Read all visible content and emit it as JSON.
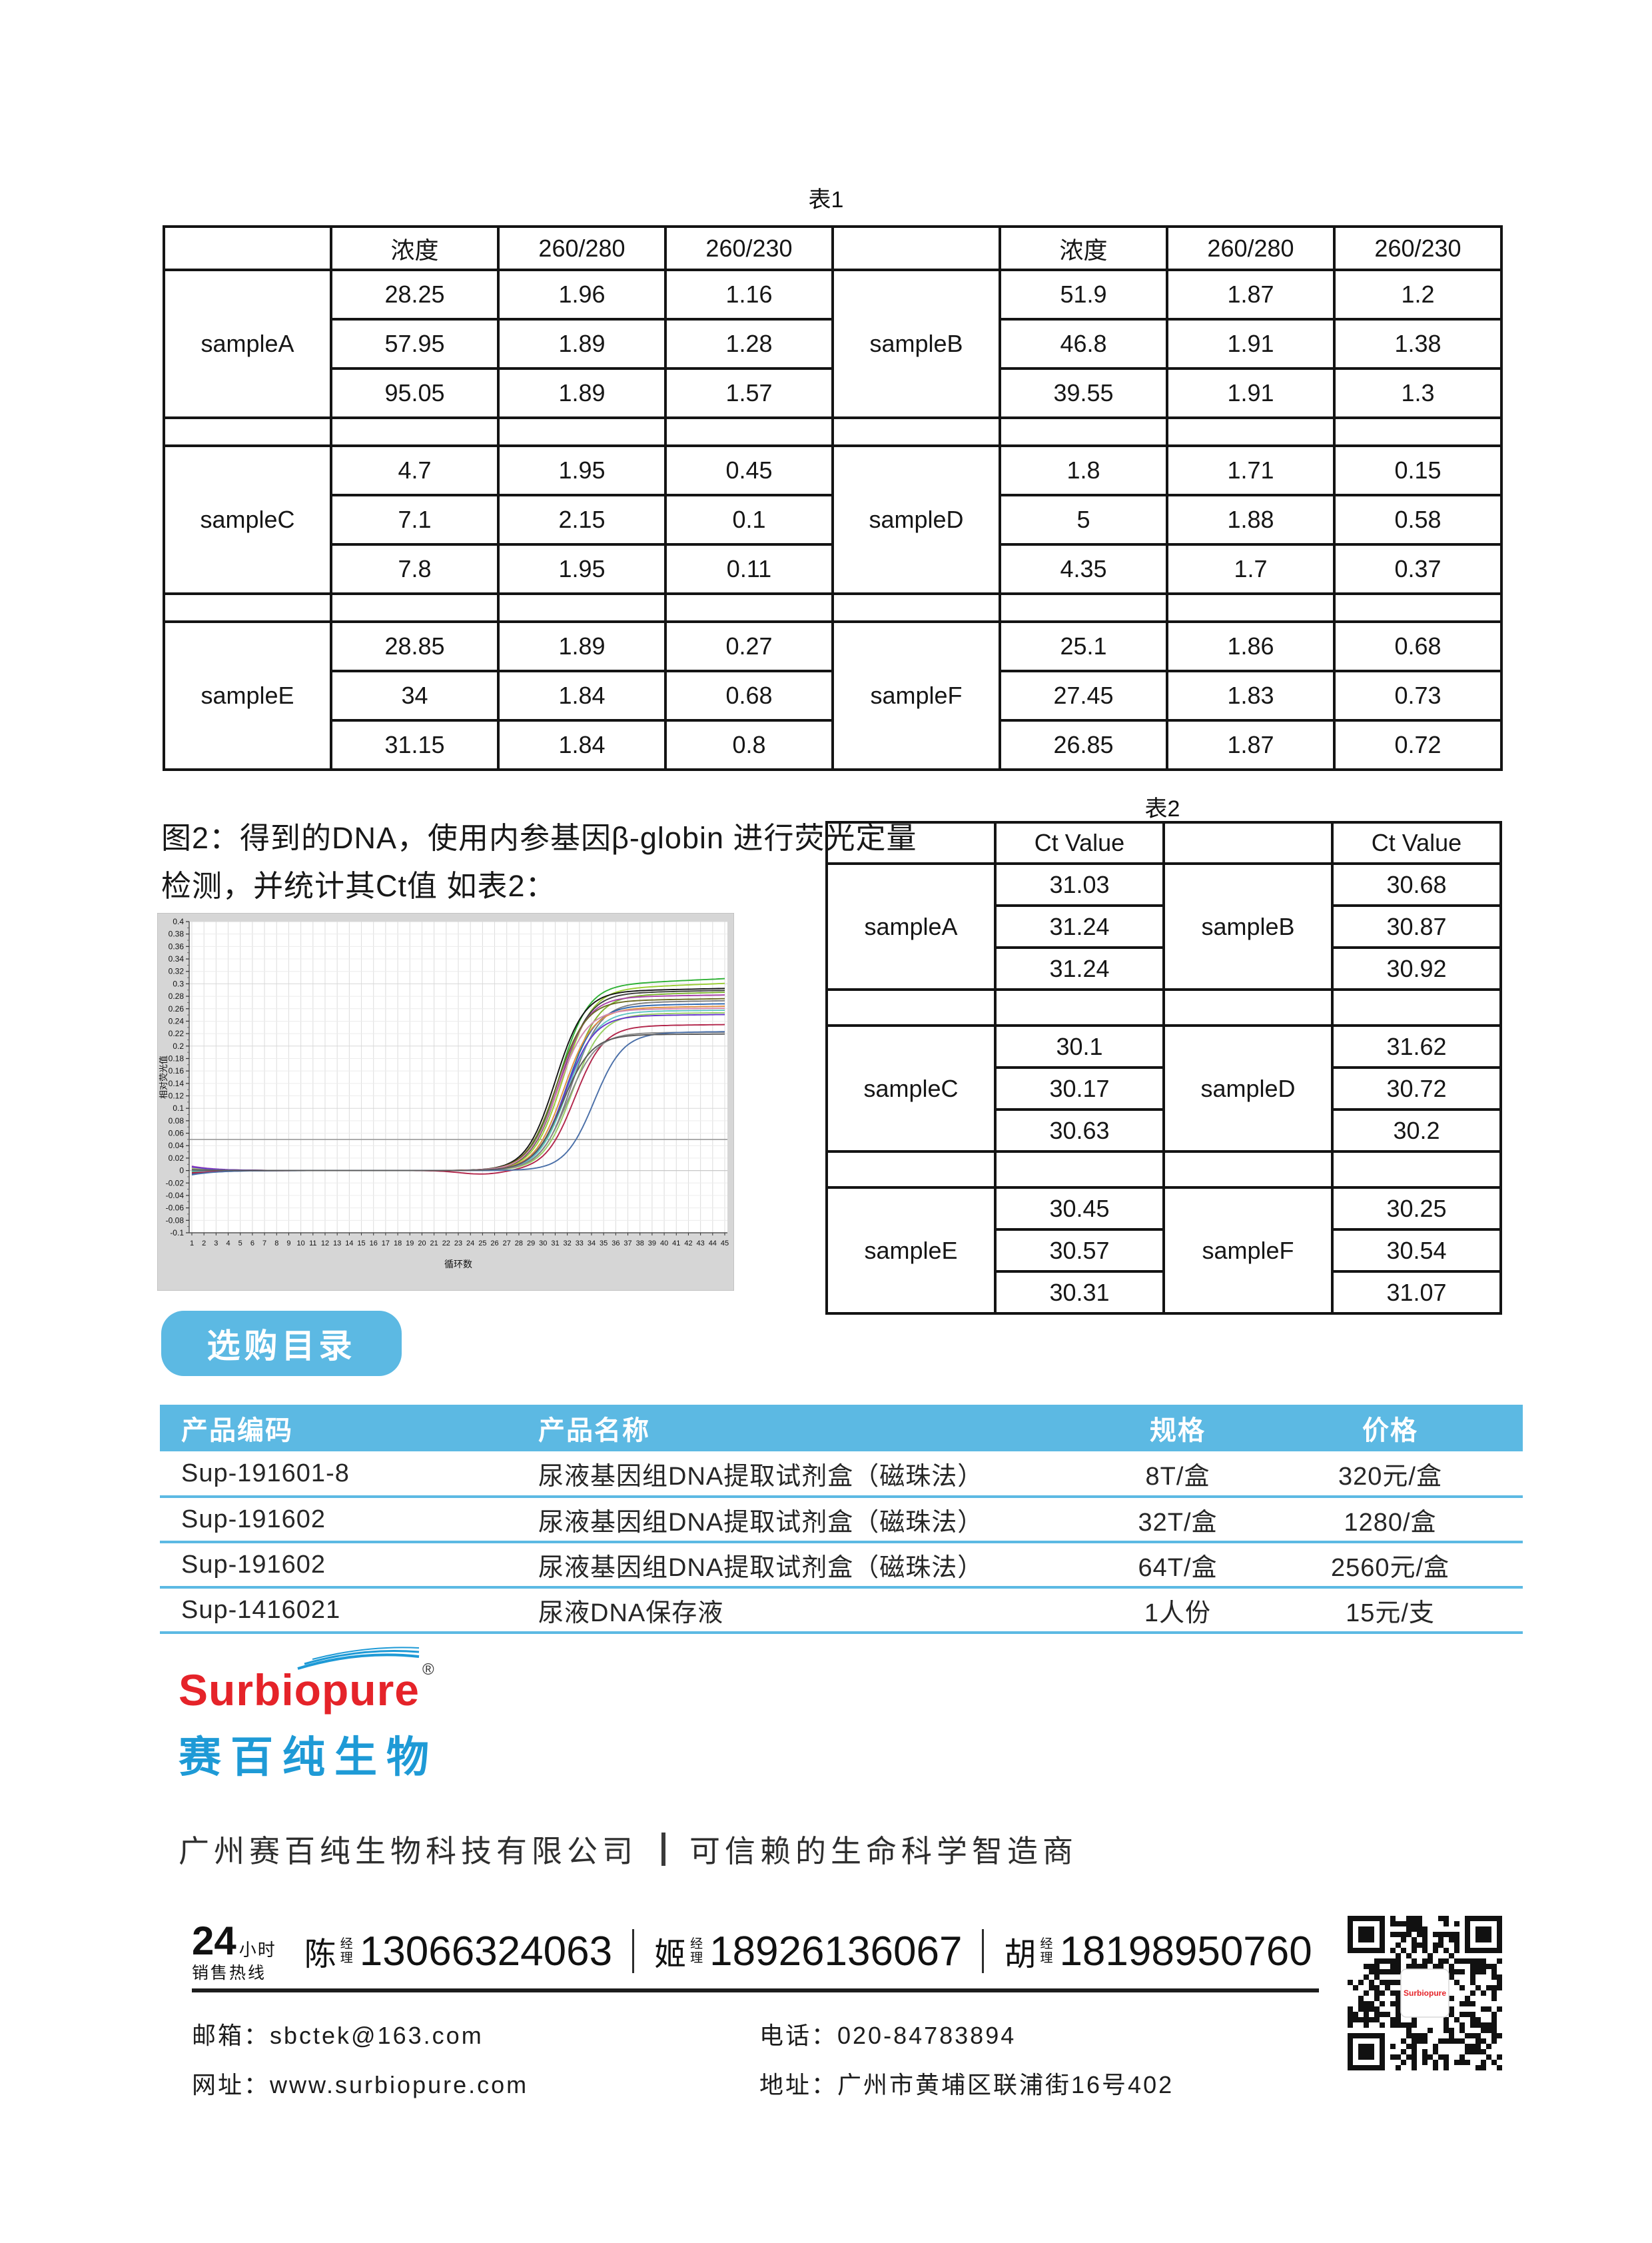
{
  "colors": {
    "accent_blue": "#5CB9E3",
    "logo_blue": "#1E9AD6",
    "logo_red": "#E52329",
    "table_border": "#141414",
    "chart_bg": "#D6D6D6",
    "chart_threshold": "#9A9A9A"
  },
  "table1": {
    "title": "表1",
    "col_headers": [
      "浓度",
      "260/280",
      "260/230"
    ],
    "groups": [
      {
        "left": {
          "name": "sampleA",
          "rows": [
            [
              "28.25",
              "1.96",
              "1.16"
            ],
            [
              "57.95",
              "1.89",
              "1.28"
            ],
            [
              "95.05",
              "1.89",
              "1.57"
            ]
          ]
        },
        "right": {
          "name": "sampleB",
          "rows": [
            [
              "51.9",
              "1.87",
              "1.2"
            ],
            [
              "46.8",
              "1.91",
              "1.38"
            ],
            [
              "39.55",
              "1.91",
              "1.3"
            ]
          ]
        }
      },
      {
        "left": {
          "name": "sampleC",
          "rows": [
            [
              "4.7",
              "1.95",
              "0.45"
            ],
            [
              "7.1",
              "2.15",
              "0.1"
            ],
            [
              "7.8",
              "1.95",
              "0.11"
            ]
          ]
        },
        "right": {
          "name": "sampleD",
          "rows": [
            [
              "1.8",
              "1.71",
              "0.15"
            ],
            [
              "5",
              "1.88",
              "0.58"
            ],
            [
              "4.35",
              "1.7",
              "0.37"
            ]
          ]
        }
      },
      {
        "left": {
          "name": "sampleE",
          "rows": [
            [
              "28.85",
              "1.89",
              "0.27"
            ],
            [
              "34",
              "1.84",
              "0.68"
            ],
            [
              "31.15",
              "1.84",
              "0.8"
            ]
          ]
        },
        "right": {
          "name": "sampleF",
          "rows": [
            [
              "25.1",
              "1.86",
              "0.68"
            ],
            [
              "27.45",
              "1.83",
              "0.73"
            ],
            [
              "26.85",
              "1.87",
              "0.72"
            ]
          ]
        }
      }
    ]
  },
  "figure2": {
    "caption_line1": "图2：得到的DNA，使用内参基因β-globin 进行荧光定量",
    "caption_line2": "检测，并统计其Ct值 如表2："
  },
  "chart_data": {
    "type": "line",
    "title": "",
    "xlabel": "循环数",
    "ylabel": "相对荧光值",
    "x_range": [
      1,
      45
    ],
    "ylim": [
      -0.1,
      0.4
    ],
    "y_tick_step": 0.02,
    "threshold_line": 0.05,
    "grid": true,
    "legend": "none",
    "description": "qPCR amplification curves: flat baseline ~0 until cycle ~27, sigmoidal rise, plateaus 0.22-0.30",
    "series": [
      {
        "color": "#2FB135",
        "plateau": 0.296,
        "midpoint": 31.3,
        "start": 0.004,
        "drift": 0.0009
      },
      {
        "color": "#9ACD32",
        "plateau": 0.29,
        "midpoint": 31.6,
        "start": 0.002,
        "drift": 0.0008
      },
      {
        "color": "#141414",
        "plateau": 0.287,
        "midpoint": 31.0,
        "start": 0.006,
        "drift": 0.0004
      },
      {
        "color": "#3D3D3D",
        "plateau": 0.284,
        "midpoint": 31.4,
        "start": -0.003,
        "drift": 0.0004
      },
      {
        "color": "#7CB52E",
        "plateau": 0.28,
        "midpoint": 32.1,
        "start": 0.001,
        "drift": 0.0005
      },
      {
        "color": "#A840A8",
        "plateau": 0.278,
        "midpoint": 31.3,
        "start": 0.007,
        "drift": 0.0003
      },
      {
        "color": "#6B6B23",
        "plateau": 0.272,
        "midpoint": 31.1,
        "start": -0.002,
        "drift": 0.0003
      },
      {
        "color": "#7D7D7D",
        "plateau": 0.269,
        "midpoint": 32.3,
        "start": 0.003,
        "drift": 0.0003
      },
      {
        "color": "#2D66B0",
        "plateau": 0.264,
        "midpoint": 31.9,
        "start": -0.005,
        "drift": 0.0003
      },
      {
        "color": "#E09040",
        "plateau": 0.26,
        "midpoint": 31.7,
        "start": 0.002,
        "drift": 0.0003
      },
      {
        "color": "#D389AE",
        "plateau": 0.258,
        "midpoint": 31.2,
        "start": 0.005,
        "drift": 0.0002
      },
      {
        "color": "#5FC4C4",
        "plateau": 0.255,
        "midpoint": 32.0,
        "start": -0.001,
        "drift": 0.0002
      },
      {
        "color": "#98CF63",
        "plateau": 0.251,
        "midpoint": 32.4,
        "start": 0.003,
        "drift": 0.0002
      },
      {
        "color": "#6636CC",
        "plateau": 0.248,
        "midpoint": 31.8,
        "start": 0.006,
        "drift": 0.0002
      },
      {
        "color": "#B2254A",
        "plateau": 0.232,
        "midpoint": 32.6,
        "start": -0.004,
        "drift": 0.0002,
        "dip": true
      },
      {
        "color": "#8A8A8A",
        "plateau": 0.221,
        "midpoint": 32.0,
        "start": 0.002,
        "drift": 0.0001
      },
      {
        "color": "#4A6FA8",
        "plateau": 0.221,
        "midpoint": 34.2,
        "start": -0.007,
        "drift": 0.0002
      },
      {
        "color": "#5A5A5A",
        "plateau": 0.218,
        "midpoint": 31.6,
        "start": 0.001,
        "drift": 0.0001
      }
    ]
  },
  "table2": {
    "title": "表2",
    "col_header": "Ct Value",
    "groups": [
      {
        "left": {
          "name": "sampleA",
          "values": [
            "31.03",
            "31.24",
            "31.24"
          ]
        },
        "right": {
          "name": "sampleB",
          "values": [
            "30.68",
            "30.87",
            "30.92"
          ]
        }
      },
      {
        "left": {
          "name": "sampleC",
          "values": [
            "30.1",
            "30.17",
            "30.63"
          ]
        },
        "right": {
          "name": "sampleD",
          "values": [
            "31.62",
            "30.72",
            "30.2"
          ]
        }
      },
      {
        "left": {
          "name": "sampleE",
          "values": [
            "30.45",
            "30.57",
            "30.31"
          ]
        },
        "right": {
          "name": "sampleF",
          "values": [
            "30.25",
            "30.54",
            "31.07"
          ]
        }
      }
    ]
  },
  "catalog": {
    "button_label": "选购目录",
    "headers": [
      "产品编码",
      "产品名称",
      "规格",
      "价格"
    ],
    "rows": [
      [
        "Sup-191601-8",
        "尿液基因组DNA提取试剂盒（磁珠法）",
        "8T/盒",
        "320元/盒"
      ],
      [
        "Sup-191602",
        "尿液基因组DNA提取试剂盒（磁珠法）",
        "32T/盒",
        "1280/盒"
      ],
      [
        "Sup-191602",
        "尿液基因组DNA提取试剂盒（磁珠法）",
        "64T/盒",
        "2560元/盒"
      ],
      [
        "Sup-1416021",
        "尿液DNA保存液",
        "1人份",
        "15元/支"
      ]
    ]
  },
  "brand": {
    "logo_en": "Surbiopure",
    "reg_mark": "®",
    "logo_cn": "赛百纯生物",
    "company": "广州赛百纯生物科技有限公司",
    "slogan": "可信赖的生命科学智造商"
  },
  "footer": {
    "hotline_num": "24",
    "hotline_unit": "小时",
    "hotline_label": "销售热线",
    "contacts": [
      {
        "name": "陈",
        "title_l1": "经",
        "title_l2": "理",
        "phone": "13066324063"
      },
      {
        "name": "姬",
        "title_l1": "经",
        "title_l2": "理",
        "phone": "18926136067"
      },
      {
        "name": "胡",
        "title_l1": "经",
        "title_l2": "理",
        "phone": "18198950760"
      }
    ],
    "email_label": "邮箱：",
    "email": "sbctek@163.com",
    "tel_label": "电话：",
    "tel": "020-84783894",
    "web_label": "网址：",
    "web": "www.surbiopure.com",
    "addr_label": "地址：",
    "addr": "广州市黄埔区联浦街16号402"
  },
  "qr": {
    "center_label": "Surbiopure"
  }
}
